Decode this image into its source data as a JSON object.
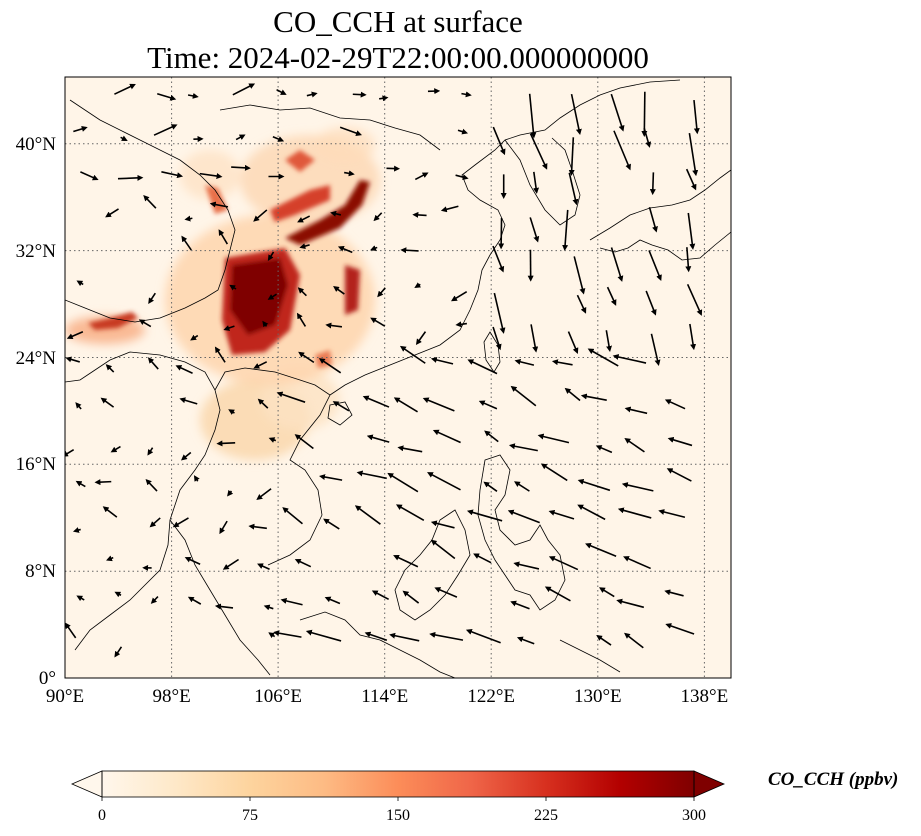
{
  "title": {
    "line1": "CO_CCH at surface",
    "line2": "Time: 2024-02-29T22:00:00.000000000"
  },
  "map": {
    "lon_range": [
      90,
      140
    ],
    "lat_range": [
      0,
      45
    ],
    "x_ticks": [
      "90°E",
      "98°E",
      "106°E",
      "114°E",
      "122°E",
      "130°E",
      "138°E"
    ],
    "x_tick_values": [
      90,
      98,
      106,
      114,
      122,
      130,
      138
    ],
    "y_ticks": [
      "0°",
      "8°N",
      "16°N",
      "24°N",
      "32°N",
      "40°N"
    ],
    "y_tick_values": [
      0,
      8,
      16,
      24,
      32,
      40
    ],
    "gridlines": "dotted",
    "field_colormap": "OrRd",
    "background_color": "#fff5e8"
  },
  "colorbar": {
    "label": "CO_CCH (ppbv)",
    "ticks": [
      "0",
      "75",
      "150",
      "225",
      "300"
    ],
    "min": 0,
    "max": 300,
    "extend": "both",
    "colors": [
      "#fff7ec",
      "#fee8c8",
      "#fdd49e",
      "#fdbb84",
      "#fc8d59",
      "#ef6548",
      "#d7301f",
      "#b30000",
      "#7f0000"
    ]
  }
}
